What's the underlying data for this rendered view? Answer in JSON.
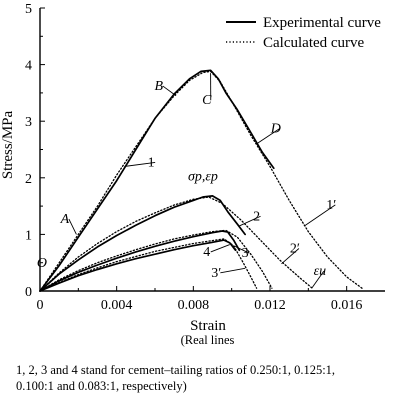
{
  "chart_data": {
    "type": "line",
    "xlabel": "Strain",
    "ylabel": "Stress/MPa",
    "xlim": [
      0,
      0.018
    ],
    "ylim": [
      0,
      5
    ],
    "x_ticks": [
      {
        "value": 0,
        "label": "0"
      },
      {
        "value": 0.004,
        "label": "0.004"
      },
      {
        "value": 0.008,
        "label": "0.008"
      },
      {
        "value": 0.012,
        "label": "0.012"
      },
      {
        "value": 0.016,
        "label": "0.016"
      }
    ],
    "y_ticks": [
      {
        "value": 1,
        "label": "1"
      },
      {
        "value": 2,
        "label": "2"
      },
      {
        "value": 3,
        "label": "3"
      },
      {
        "value": 4,
        "label": "4"
      },
      {
        "value": 5,
        "label": "5"
      }
    ],
    "legend": {
      "placement": "top-right",
      "entries": [
        {
          "label": "Experimental curve",
          "style": "solid"
        },
        {
          "label": "Calculated curve",
          "style": "dotted"
        }
      ]
    },
    "series": [
      {
        "style": "solid",
        "points": [
          [
            0,
            0
          ],
          [
            0.001,
            0.45
          ],
          [
            0.002,
            0.95
          ],
          [
            0.003,
            1.45
          ],
          [
            0.004,
            1.95
          ],
          [
            0.005,
            2.5
          ],
          [
            0.006,
            3.05
          ],
          [
            0.007,
            3.48
          ],
          [
            0.0078,
            3.75
          ],
          [
            0.0084,
            3.88
          ],
          [
            0.0089,
            3.9
          ],
          [
            0.0093,
            3.75
          ],
          [
            0.0097,
            3.5
          ],
          [
            0.0103,
            3.2
          ],
          [
            0.011,
            2.8
          ],
          [
            0.0116,
            2.45
          ],
          [
            0.0122,
            2.17
          ]
        ]
      },
      {
        "style": "dotted",
        "points": [
          [
            0,
            0
          ],
          [
            0.001,
            0.5
          ],
          [
            0.002,
            1.0
          ],
          [
            0.003,
            1.5
          ],
          [
            0.004,
            2.05
          ],
          [
            0.005,
            2.55
          ],
          [
            0.006,
            3.05
          ],
          [
            0.007,
            3.45
          ],
          [
            0.0078,
            3.72
          ],
          [
            0.0085,
            3.86
          ],
          [
            0.0089,
            3.88
          ],
          [
            0.0094,
            3.7
          ],
          [
            0.01,
            3.35
          ],
          [
            0.011,
            2.75
          ],
          [
            0.012,
            2.2
          ],
          [
            0.013,
            1.6
          ],
          [
            0.014,
            1.05
          ],
          [
            0.015,
            0.6
          ],
          [
            0.016,
            0.25
          ],
          [
            0.0168,
            0.05
          ]
        ]
      },
      {
        "style": "solid",
        "points": [
          [
            0,
            0
          ],
          [
            0.001,
            0.3
          ],
          [
            0.002,
            0.55
          ],
          [
            0.003,
            0.78
          ],
          [
            0.004,
            0.98
          ],
          [
            0.005,
            1.16
          ],
          [
            0.006,
            1.33
          ],
          [
            0.007,
            1.48
          ],
          [
            0.008,
            1.6
          ],
          [
            0.0085,
            1.66
          ],
          [
            0.009,
            1.68
          ],
          [
            0.0094,
            1.6
          ],
          [
            0.0098,
            1.4
          ],
          [
            0.0103,
            1.18
          ],
          [
            0.0107,
            1.0
          ]
        ]
      },
      {
        "style": "dotted",
        "points": [
          [
            0,
            0
          ],
          [
            0.001,
            0.32
          ],
          [
            0.002,
            0.6
          ],
          [
            0.003,
            0.84
          ],
          [
            0.004,
            1.05
          ],
          [
            0.005,
            1.23
          ],
          [
            0.006,
            1.38
          ],
          [
            0.007,
            1.52
          ],
          [
            0.008,
            1.62
          ],
          [
            0.0088,
            1.66
          ],
          [
            0.0095,
            1.55
          ],
          [
            0.0105,
            1.25
          ],
          [
            0.0115,
            0.9
          ],
          [
            0.0125,
            0.55
          ],
          [
            0.0135,
            0.25
          ],
          [
            0.0142,
            0.05
          ]
        ]
      },
      {
        "style": "solid",
        "points": [
          [
            0,
            0
          ],
          [
            0.001,
            0.18
          ],
          [
            0.002,
            0.33
          ],
          [
            0.003,
            0.46
          ],
          [
            0.004,
            0.58
          ],
          [
            0.005,
            0.69
          ],
          [
            0.006,
            0.79
          ],
          [
            0.007,
            0.88
          ],
          [
            0.008,
            0.96
          ],
          [
            0.009,
            1.03
          ],
          [
            0.0095,
            1.06
          ],
          [
            0.0098,
            1.04
          ],
          [
            0.0101,
            0.9
          ],
          [
            0.0104,
            0.72
          ]
        ]
      },
      {
        "style": "dotted",
        "points": [
          [
            0,
            0
          ],
          [
            0.001,
            0.2
          ],
          [
            0.002,
            0.36
          ],
          [
            0.003,
            0.5
          ],
          [
            0.004,
            0.62
          ],
          [
            0.005,
            0.73
          ],
          [
            0.006,
            0.83
          ],
          [
            0.007,
            0.92
          ],
          [
            0.008,
            0.99
          ],
          [
            0.009,
            1.05
          ],
          [
            0.0097,
            1.07
          ],
          [
            0.0103,
            0.95
          ],
          [
            0.011,
            0.65
          ],
          [
            0.0116,
            0.35
          ],
          [
            0.0121,
            0.05
          ]
        ]
      },
      {
        "style": "solid",
        "points": [
          [
            0,
            0
          ],
          [
            0.001,
            0.14
          ],
          [
            0.002,
            0.27
          ],
          [
            0.003,
            0.38
          ],
          [
            0.004,
            0.48
          ],
          [
            0.005,
            0.57
          ],
          [
            0.006,
            0.65
          ],
          [
            0.007,
            0.73
          ],
          [
            0.008,
            0.8
          ],
          [
            0.009,
            0.86
          ],
          [
            0.0096,
            0.9
          ],
          [
            0.0099,
            0.85
          ],
          [
            0.0102,
            0.72
          ]
        ]
      },
      {
        "style": "dotted",
        "points": [
          [
            0,
            0
          ],
          [
            0.001,
            0.15
          ],
          [
            0.002,
            0.29
          ],
          [
            0.003,
            0.41
          ],
          [
            0.004,
            0.52
          ],
          [
            0.005,
            0.61
          ],
          [
            0.006,
            0.7
          ],
          [
            0.007,
            0.77
          ],
          [
            0.008,
            0.84
          ],
          [
            0.009,
            0.89
          ],
          [
            0.0096,
            0.92
          ],
          [
            0.0101,
            0.8
          ],
          [
            0.0106,
            0.5
          ],
          [
            0.011,
            0.25
          ],
          [
            0.0113,
            0.05
          ]
        ]
      }
    ],
    "annotations": [
      {
        "text": "A",
        "style": "italic",
        "x": 0.0013,
        "y": 1.2,
        "leader_to": [
          0.0019,
          1.0
        ]
      },
      {
        "text": "B",
        "style": "italic",
        "x": 0.0062,
        "y": 3.55,
        "leader_to": [
          0.0071,
          3.45
        ]
      },
      {
        "text": "C",
        "style": "italic",
        "x": 0.0087,
        "y": 3.3,
        "leader_to": [
          0.0089,
          3.85
        ]
      },
      {
        "text": "D",
        "style": "italic",
        "x": 0.0123,
        "y": 2.8,
        "leader_to": [
          0.0113,
          2.6
        ]
      },
      {
        "text": "O",
        "style": "italic",
        "x": 0.0001,
        "y": 0.42,
        "leader_to": null
      },
      {
        "text": "1",
        "style": "normal",
        "x": 0.0058,
        "y": 2.2,
        "leader_to": [
          0.0044,
          2.2
        ]
      },
      {
        "text": "1′",
        "style": "normal",
        "x": 0.0152,
        "y": 1.45,
        "leader_to": [
          0.0138,
          1.15
        ]
      },
      {
        "text": "2",
        "style": "normal",
        "x": 0.0113,
        "y": 1.25,
        "leader_to": [
          0.0104,
          1.15
        ]
      },
      {
        "text": "2′",
        "style": "normal",
        "x": 0.0133,
        "y": 0.68,
        "leader_to": [
          0.0126,
          0.48
        ]
      },
      {
        "text": "3",
        "style": "normal",
        "x": 0.0107,
        "y": 0.6,
        "leader_to": [
          0.0101,
          0.8
        ]
      },
      {
        "text": "3′",
        "style": "normal",
        "x": 0.0092,
        "y": 0.25,
        "leader_to": [
          0.0107,
          0.4
        ]
      },
      {
        "text": "4",
        "style": "normal",
        "x": 0.0087,
        "y": 0.62,
        "leader_to": [
          0.0099,
          0.82
        ]
      },
      {
        "text": "σp,εp",
        "style": "italic",
        "x": 0.0085,
        "y": 1.95,
        "leader_to": null
      },
      {
        "text": "εu",
        "style": "italic",
        "x": 0.0146,
        "y": 0.28,
        "leader_to": [
          0.0142,
          0.06
        ]
      }
    ]
  },
  "note": "(Real lines",
  "caption_line1": "1, 2, 3 and 4 stand for cement–tailing ratios of 0.250:1, 0.125:1,",
  "caption_line2": "0.100:1 and 0.083:1, respectively)"
}
